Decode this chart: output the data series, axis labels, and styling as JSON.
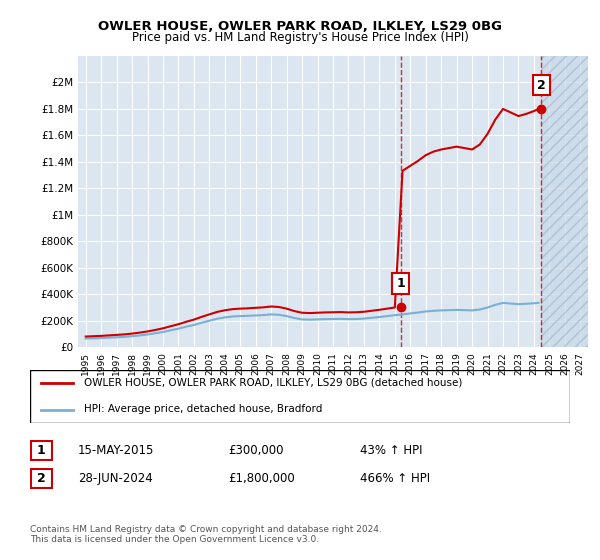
{
  "title": "OWLER HOUSE, OWLER PARK ROAD, ILKLEY, LS29 0BG",
  "subtitle": "Price paid vs. HM Land Registry's House Price Index (HPI)",
  "background_color": "#dce6f1",
  "plot_bg_color": "#dce6f1",
  "hpi_color": "#7ab0d4",
  "house_color": "#cc0000",
  "ylim": [
    0,
    2200000
  ],
  "yticks": [
    0,
    200000,
    400000,
    600000,
    800000,
    1000000,
    1200000,
    1400000,
    1600000,
    1800000,
    2000000
  ],
  "ytick_labels": [
    "£0",
    "£200K",
    "£400K",
    "£600K",
    "£800K",
    "£1M",
    "£1.2M",
    "£1.4M",
    "£1.6M",
    "£1.8M",
    "£2M"
  ],
  "xlim_start": 1994.5,
  "xlim_end": 2027.5,
  "xticks": [
    1995,
    1996,
    1997,
    1998,
    1999,
    2000,
    2001,
    2002,
    2003,
    2004,
    2005,
    2006,
    2007,
    2008,
    2009,
    2010,
    2011,
    2012,
    2013,
    2014,
    2015,
    2016,
    2017,
    2018,
    2019,
    2020,
    2021,
    2022,
    2023,
    2024,
    2025,
    2026,
    2027
  ],
  "hpi_years": [
    1995,
    1995.5,
    1996,
    1996.5,
    1997,
    1997.5,
    1998,
    1998.5,
    1999,
    1999.5,
    2000,
    2000.5,
    2001,
    2001.5,
    2002,
    2002.5,
    2003,
    2003.5,
    2004,
    2004.5,
    2005,
    2005.5,
    2006,
    2006.5,
    2007,
    2007.5,
    2008,
    2008.5,
    2009,
    2009.5,
    2010,
    2010.5,
    2011,
    2011.5,
    2012,
    2012.5,
    2013,
    2013.5,
    2014,
    2014.5,
    2015,
    2015.5,
    2016,
    2016.5,
    2017,
    2017.5,
    2018,
    2018.5,
    2019,
    2019.5,
    2020,
    2020.5,
    2021,
    2021.5,
    2022,
    2022.5,
    2023,
    2023.5,
    2024,
    2024.3
  ],
  "hpi_values": [
    65000,
    67000,
    69000,
    72000,
    75000,
    78000,
    83000,
    89000,
    96000,
    105000,
    115000,
    128000,
    140000,
    155000,
    168000,
    185000,
    200000,
    215000,
    225000,
    232000,
    235000,
    237000,
    240000,
    243000,
    248000,
    245000,
    235000,
    220000,
    210000,
    208000,
    210000,
    212000,
    213000,
    214000,
    212000,
    213000,
    216000,
    222000,
    228000,
    235000,
    242000,
    248000,
    255000,
    262000,
    270000,
    275000,
    278000,
    280000,
    282000,
    280000,
    278000,
    285000,
    300000,
    320000,
    335000,
    330000,
    325000,
    328000,
    332000,
    335000
  ],
  "house_sale1_year": 2015.37,
  "house_sale1_price": 300000,
  "house_sale2_year": 2024.49,
  "house_sale2_price": 1800000,
  "annotation1_label": "1",
  "annotation2_label": "2",
  "legend_house": "OWLER HOUSE, OWLER PARK ROAD, ILKLEY, LS29 0BG (detached house)",
  "legend_hpi": "HPI: Average price, detached house, Bradford",
  "table_row1": [
    "1",
    "15-MAY-2015",
    "£300,000",
    "43% ↑ HPI"
  ],
  "table_row2": [
    "2",
    "28-JUN-2024",
    "£1,800,000",
    "466% ↑ HPI"
  ],
  "footer": "Contains HM Land Registry data © Crown copyright and database right 2024.\nThis data is licensed under the Open Government Licence v3.0.",
  "dashed_vline_color": "#cc0000",
  "grid_color": "#ffffff",
  "hatch_color": "#b0c4d8"
}
